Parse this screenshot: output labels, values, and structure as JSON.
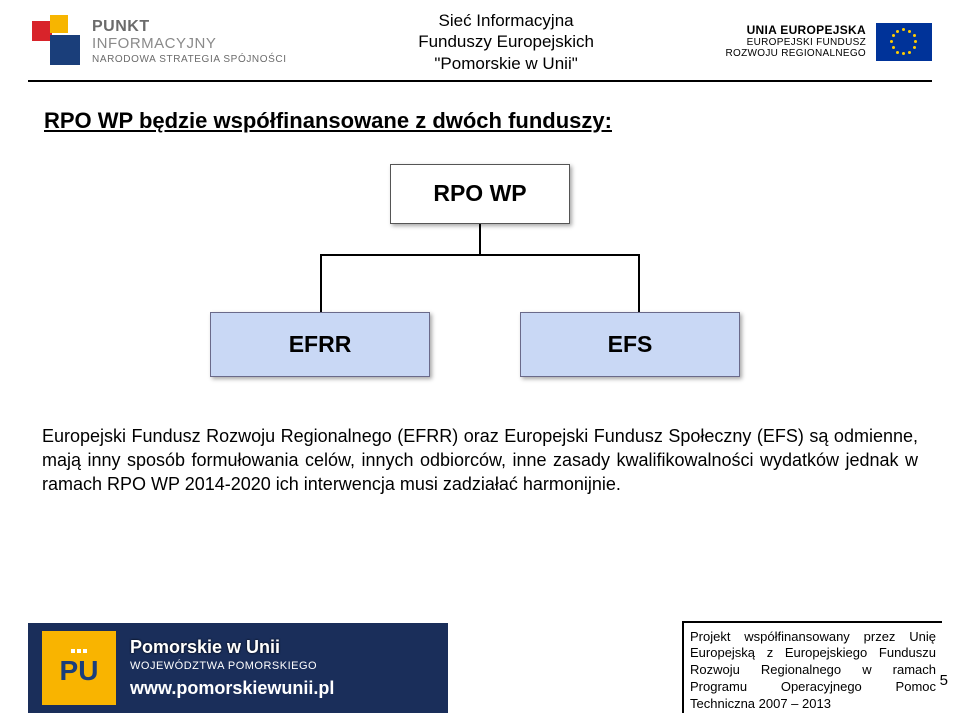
{
  "header": {
    "left": {
      "line1": "PUNKT",
      "line2": "INFORMACYJNY",
      "line3": "NARODOWA STRATEGIA SPÓJNOŚCI",
      "colors": {
        "red": "#d8232a",
        "yellow": "#f7b500",
        "blue": "#1a3e7a"
      }
    },
    "center": {
      "line1": "Sieć Informacyjna",
      "line2": "Funduszy Europejskich",
      "line3": "\"Pomorskie w Unii\""
    },
    "right": {
      "line1": "UNIA EUROPEJSKA",
      "line2": "EUROPEJSKI FUNDUSZ",
      "line3": "ROZWOJU REGIONALNEGO",
      "flag_bg": "#003399",
      "star_color": "#ffcc00"
    }
  },
  "title": "RPO WP będzie współfinansowane z dwóch funduszy:",
  "diagram": {
    "top": "RPO WP",
    "left": "EFRR",
    "right": "EFS",
    "child_bg": "#c9d8f5",
    "child_border": "#6a6a8a"
  },
  "paragraph": "Europejski Fundusz Rozwoju Regionalnego (EFRR) oraz Europejski Fundusz Społeczny (EFS) są odmienne, mają inny sposób formułowania celów, innych odbiorców, inne zasady kwalifikowalności wydatków jednak w ramach RPO WP 2014-2020 ich interwencja musi zadziałać harmonijnie.",
  "footer": {
    "left": {
      "tile_letters": "PU",
      "tile_bg": "#f9b400",
      "line1": "Pomorskie w Unii",
      "line2": "WOJEWÓDZTWA POMORSKIEGO",
      "url": "www.pomorskiewunii.pl",
      "bg": "#1a2e5a"
    },
    "right_box": "Projekt współfinansowany przez Unię Europejską z Europejskiego Funduszu Rozwoju Regionalnego w ramach Programu Operacyjnego Pomoc Techniczna 2007 – 2013",
    "page_number": "5"
  }
}
